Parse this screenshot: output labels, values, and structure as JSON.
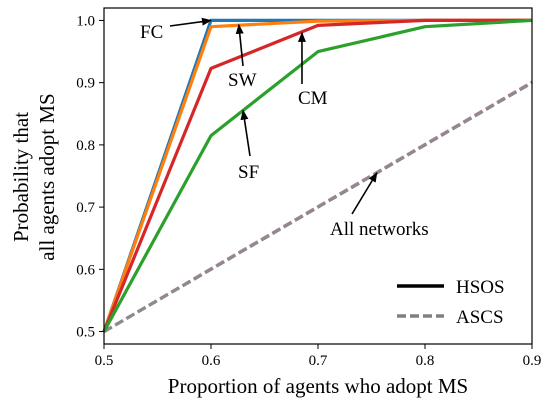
{
  "chart_data": {
    "type": "line",
    "xlabel": "Proportion of agents who adopt MS",
    "ylabel": [
      "Probability that",
      "all agents adopt MS"
    ],
    "xlim": [
      0.5,
      0.9
    ],
    "ylim": [
      0.48,
      1.02
    ],
    "x_ticks": [
      "0.5",
      "0.6",
      "0.7",
      "0.8",
      "0.9"
    ],
    "y_ticks": [
      "0.5",
      "0.6",
      "0.7",
      "0.8",
      "0.9",
      "1.0"
    ],
    "grid": false,
    "legend_position": "bottom-right",
    "x": [
      0.5,
      0.6,
      0.7,
      0.8,
      0.9
    ],
    "series": [
      {
        "network": "FC",
        "method": "HSOS",
        "color": "#1f77b4",
        "style": "solid",
        "values": [
          0.5,
          1.0,
          1.0,
          1.0,
          1.0
        ]
      },
      {
        "network": "SW",
        "method": "HSOS",
        "color": "#ff7f0e",
        "style": "solid",
        "values": [
          0.5,
          0.99,
          0.999,
          1.0,
          1.0
        ]
      },
      {
        "network": "CM",
        "method": "HSOS",
        "color": "#d62728",
        "style": "solid",
        "values": [
          0.5,
          0.923,
          0.992,
          1.0,
          1.0
        ]
      },
      {
        "network": "SF",
        "method": "HSOS",
        "color": "#2ca02c",
        "style": "solid",
        "values": [
          0.5,
          0.815,
          0.95,
          0.99,
          1.0
        ]
      },
      {
        "network": "All networks",
        "method": "ASCS",
        "color": "#9467bd",
        "style": "dashed",
        "values": [
          0.5,
          0.6,
          0.7,
          0.8,
          0.9
        ]
      },
      {
        "network": "All networks",
        "method": "ASCS",
        "color": "#e377c2",
        "style": "dashed",
        "values": [
          0.5,
          0.601,
          0.701,
          0.801,
          0.901
        ]
      },
      {
        "network": "All networks",
        "method": "ASCS",
        "color": "#7f7f7f",
        "style": "dashed",
        "values": [
          0.5,
          0.6,
          0.7,
          0.8,
          0.9
        ]
      },
      {
        "network": "All networks",
        "method": "ASCS",
        "color": "#8c8c8c",
        "style": "dashed",
        "values": [
          0.5,
          0.6,
          0.7,
          0.8,
          0.9
        ]
      }
    ],
    "annotations": [
      {
        "text": "FC",
        "target": [
          0.6,
          1.0
        ]
      },
      {
        "text": "SW",
        "target": [
          0.626,
          0.993
        ]
      },
      {
        "text": "CM",
        "target": [
          0.685,
          0.98
        ]
      },
      {
        "text": "SF",
        "target": [
          0.63,
          0.855
        ]
      },
      {
        "text": "All networks",
        "target": [
          0.755,
          0.755
        ]
      }
    ],
    "legend": [
      {
        "label": "HSOS",
        "color": "#000000",
        "style": "solid"
      },
      {
        "label": "ASCS",
        "color": "#808080",
        "style": "dashed"
      }
    ]
  }
}
